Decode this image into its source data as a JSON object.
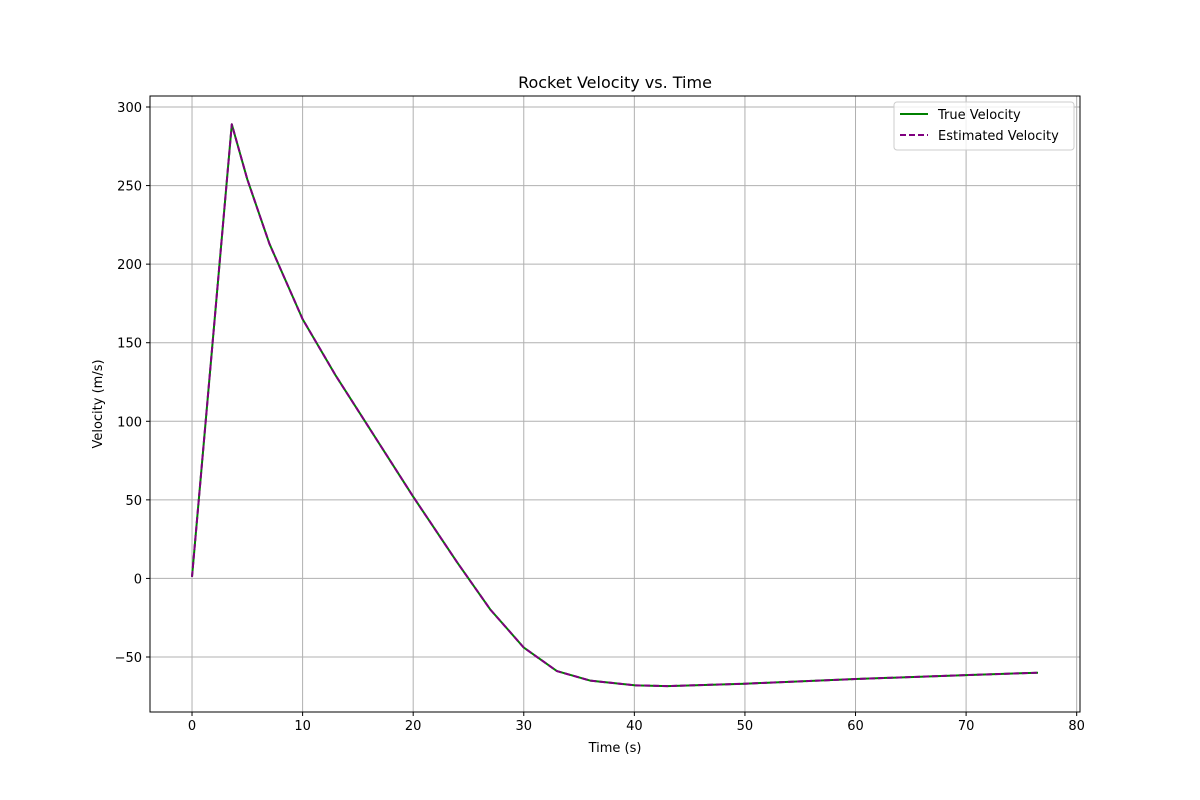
{
  "chart_data": {
    "type": "line",
    "title": "Rocket Velocity vs. Time",
    "xlabel": "Time (s)",
    "ylabel": "Velocity (m/s)",
    "xlim": [
      -3.8,
      80.3
    ],
    "ylim": [
      -85,
      307
    ],
    "xticks": [
      0,
      10,
      20,
      30,
      40,
      50,
      60,
      70,
      80
    ],
    "yticks": [
      -50,
      0,
      50,
      100,
      150,
      200,
      250,
      300
    ],
    "grid": true,
    "legend_position": "top-right",
    "x": [
      0,
      3.6,
      5,
      7,
      10,
      13,
      16,
      20,
      24,
      27,
      30,
      33,
      36,
      40,
      43,
      50,
      60,
      70,
      76.5
    ],
    "series": [
      {
        "name": "True Velocity",
        "color": "#008000",
        "style": "solid",
        "values": [
          1,
          289,
          254,
          213,
          165,
          129,
          96,
          52,
          10,
          -20,
          -44,
          -59,
          -65,
          -68,
          -68.5,
          -67,
          -64,
          -61.5,
          -60
        ]
      },
      {
        "name": "Estimated Velocity",
        "color": "#800080",
        "style": "dashed",
        "values": [
          1,
          289,
          254,
          213,
          165,
          129,
          96,
          52,
          10,
          -20,
          -44,
          -59,
          -65,
          -68,
          -68.5,
          -67,
          -64,
          -61.5,
          -60
        ]
      }
    ]
  }
}
